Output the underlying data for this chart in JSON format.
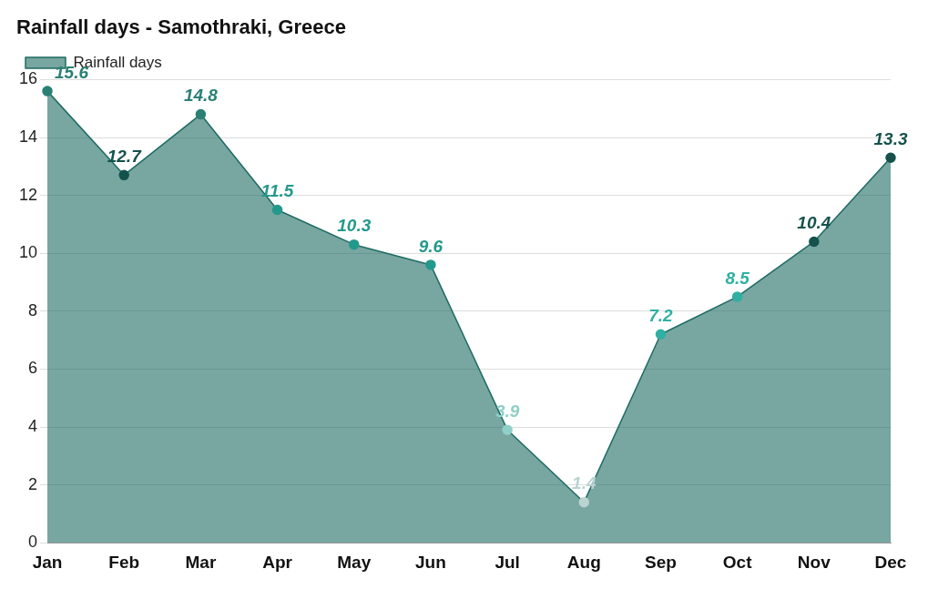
{
  "chart_data": {
    "type": "area",
    "title": "Rainfall days - Samothraki, Greece",
    "categories": [
      "Jan",
      "Feb",
      "Mar",
      "Apr",
      "May",
      "Jun",
      "Jul",
      "Aug",
      "Sep",
      "Oct",
      "Nov",
      "Dec"
    ],
    "series": [
      {
        "name": "Rainfall days",
        "color": "#1e6b62",
        "values": [
          15.6,
          12.7,
          14.8,
          11.5,
          10.3,
          9.6,
          3.9,
          1.4,
          7.2,
          8.5,
          10.4,
          13.3
        ],
        "colors": [
          "#2a8074",
          "#15524c",
          "#2a8074",
          "#23998c",
          "#23998c",
          "#23998c",
          "#8fcfc7",
          "#b9d3d1",
          "#2fb0a3",
          "#2fb0a3",
          "#15524c",
          "#15524c"
        ]
      }
    ],
    "ylim": [
      0,
      16
    ],
    "yticks": [
      0,
      2,
      4,
      6,
      8,
      10,
      12,
      14,
      16
    ],
    "grid": "y",
    "legend": "top left",
    "marker": "circle",
    "data_labels": true
  }
}
